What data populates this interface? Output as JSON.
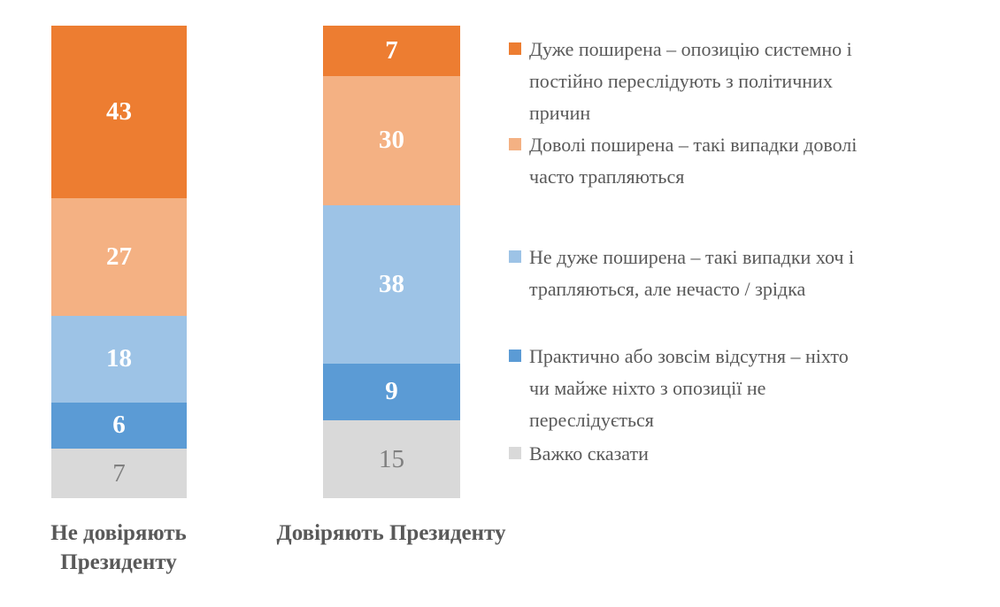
{
  "chart_data": {
    "type": "bar",
    "subtype": "100%-stacked-column",
    "orientation": "vertical",
    "categories": [
      "Не довіряють Президенту",
      "Довіряють Президенту"
    ],
    "series": [
      {
        "name": "Дуже поширена – опозицію системно і постійно переслідують з політичних причин",
        "color": "#ED7D31",
        "values": [
          43,
          7
        ]
      },
      {
        "name": "Доволі поширена – такі випадки доволі часто трапляються",
        "color": "#F4B183",
        "values": [
          27,
          30
        ]
      },
      {
        "name": "Не дуже поширена – такі випадки хоч і трапляються, але нечасто / зрідка",
        "color": "#9DC3E6",
        "values": [
          18,
          38
        ]
      },
      {
        "name": "Практично або зовсім відсутня – ніхто чи майже ніхто з опозиції не переслідується",
        "color": "#5B9BD5",
        "values": [
          6,
          9
        ]
      },
      {
        "name": "Важко сказати",
        "color": "#D9D9D9",
        "values": [
          7,
          15
        ]
      }
    ],
    "value_labels_shown": true,
    "legend_position": "right",
    "grid": false,
    "axes_shown": false
  },
  "category_labels": {
    "left_lines": [
      "Не довіряють",
      "Президенту"
    ],
    "right": "Довіряють Президенту"
  },
  "legend": {
    "items": [
      {
        "swatch_color": "#ED7D31",
        "lines": [
          "Дуже поширена – опозицію системно і",
          "постійно переслідують з політичних",
          "причин"
        ]
      },
      {
        "swatch_color": "#F4B183",
        "lines": [
          "Доволі поширена – такі випадки доволі",
          "часто трапляються"
        ]
      },
      {
        "swatch_color": "#9DC3E6",
        "lines": [
          "Не дуже поширена – такі випадки хоч і",
          "трапляються, але нечасто / зрідка"
        ]
      },
      {
        "swatch_color": "#5B9BD5",
        "lines": [
          "Практично або зовсім відсутня – ніхто",
          "чи майже ніхто з опозиції не",
          "переслідується"
        ]
      },
      {
        "swatch_color": "#D9D9D9",
        "lines": [
          "Важко сказати"
        ]
      }
    ]
  },
  "colors": {
    "background": "#ffffff",
    "text": "#595959",
    "value_text_on_color": "#ffffff",
    "value_text_on_gray": "#7f7f7f"
  }
}
